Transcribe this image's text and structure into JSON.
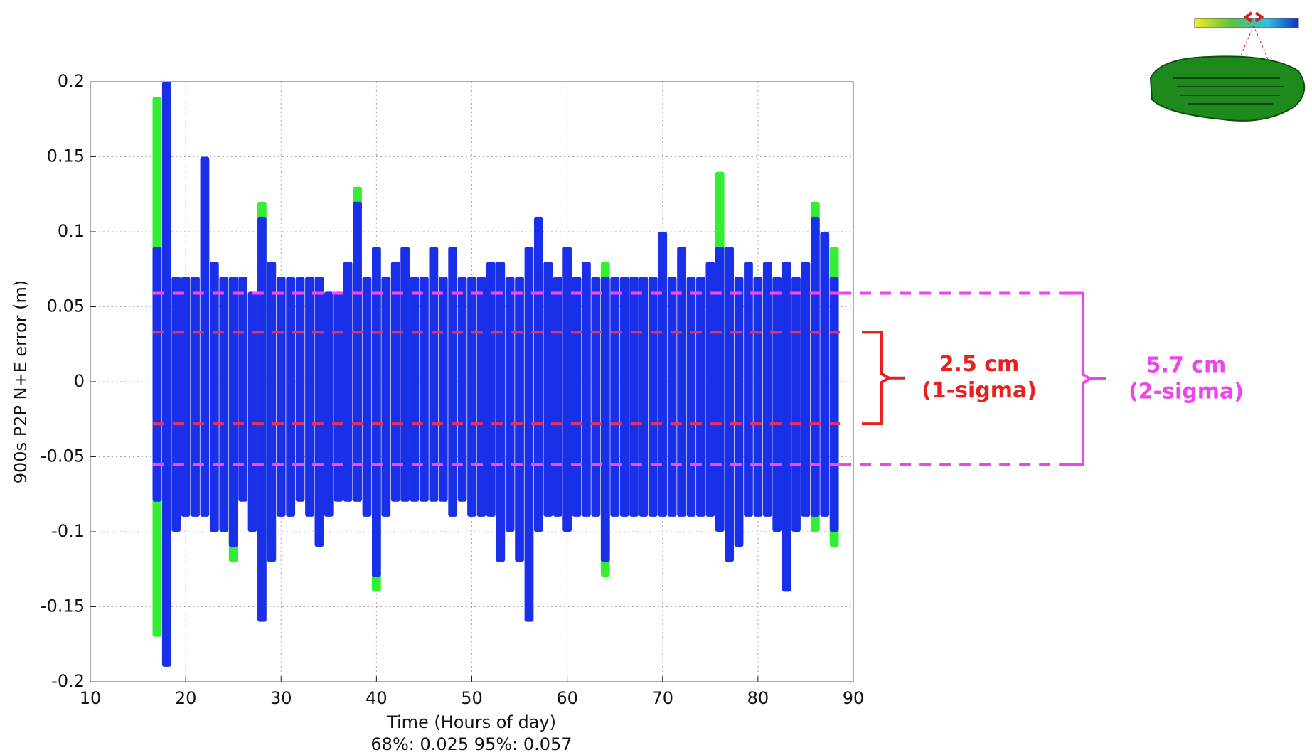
{
  "chart_data": {
    "type": "range",
    "xlabel": "Time (Hours of day)",
    "ylabel": "900s P2P N+E error (m)",
    "footnote": "68%: 0.025  95%: 0.057",
    "xlim": [
      10,
      90
    ],
    "xticks": [
      10,
      20,
      30,
      40,
      50,
      60,
      70,
      80,
      90
    ],
    "ylim": [
      -0.2,
      0.2
    ],
    "yticks": [
      0.2,
      0.15,
      0.1,
      0.05,
      0,
      -0.05,
      -0.1,
      -0.15,
      -0.2
    ],
    "grid": true,
    "series": [
      {
        "color": "#33ee33",
        "x": [
          17,
          18,
          25,
          28,
          38,
          40,
          53,
          64,
          76,
          86,
          88
        ],
        "high": [
          0.19,
          0.2,
          0.07,
          0.12,
          0.13,
          0.09,
          0.08,
          0.08,
          0.14,
          0.12,
          0.09
        ],
        "low": [
          -0.17,
          -0.18,
          -0.12,
          -0.11,
          -0.08,
          -0.14,
          -0.12,
          -0.13,
          -0.1,
          -0.1,
          -0.11
        ]
      },
      {
        "color": "#1a2fe8",
        "x": [
          17,
          18,
          19,
          20,
          21,
          22,
          23,
          24,
          25,
          26,
          27,
          28,
          29,
          30,
          31,
          32,
          33,
          34,
          35,
          36,
          37,
          38,
          39,
          40,
          41,
          42,
          43,
          44,
          45,
          46,
          47,
          48,
          49,
          50,
          51,
          52,
          53,
          54,
          55,
          56,
          57,
          58,
          59,
          60,
          61,
          62,
          63,
          64,
          65,
          66,
          67,
          68,
          69,
          70,
          71,
          72,
          73,
          74,
          75,
          76,
          77,
          78,
          79,
          80,
          81,
          82,
          83,
          84,
          85,
          86,
          87,
          88
        ],
        "high": [
          0.09,
          0.2,
          0.07,
          0.07,
          0.07,
          0.15,
          0.08,
          0.07,
          0.07,
          0.07,
          0.06,
          0.11,
          0.08,
          0.07,
          0.07,
          0.07,
          0.07,
          0.07,
          0.06,
          0.06,
          0.08,
          0.12,
          0.07,
          0.09,
          0.07,
          0.08,
          0.09,
          0.07,
          0.07,
          0.09,
          0.07,
          0.09,
          0.07,
          0.07,
          0.07,
          0.08,
          0.08,
          0.07,
          0.07,
          0.09,
          0.11,
          0.08,
          0.07,
          0.09,
          0.07,
          0.08,
          0.07,
          0.07,
          0.07,
          0.07,
          0.07,
          0.07,
          0.07,
          0.1,
          0.07,
          0.09,
          0.07,
          0.07,
          0.08,
          0.09,
          0.09,
          0.07,
          0.08,
          0.07,
          0.08,
          0.07,
          0.08,
          0.07,
          0.08,
          0.11,
          0.1,
          0.07
        ],
        "low": [
          -0.08,
          -0.19,
          -0.1,
          -0.09,
          -0.09,
          -0.09,
          -0.1,
          -0.1,
          -0.11,
          -0.08,
          -0.1,
          -0.16,
          -0.12,
          -0.09,
          -0.09,
          -0.08,
          -0.09,
          -0.11,
          -0.09,
          -0.08,
          -0.08,
          -0.08,
          -0.09,
          -0.13,
          -0.09,
          -0.08,
          -0.08,
          -0.08,
          -0.08,
          -0.08,
          -0.08,
          -0.09,
          -0.08,
          -0.09,
          -0.09,
          -0.09,
          -0.12,
          -0.1,
          -0.12,
          -0.16,
          -0.1,
          -0.09,
          -0.09,
          -0.1,
          -0.09,
          -0.09,
          -0.09,
          -0.12,
          -0.09,
          -0.09,
          -0.09,
          -0.09,
          -0.09,
          -0.09,
          -0.09,
          -0.09,
          -0.09,
          -0.09,
          -0.09,
          -0.1,
          -0.12,
          -0.11,
          -0.09,
          -0.09,
          -0.09,
          -0.1,
          -0.14,
          -0.1,
          -0.09,
          -0.09,
          -0.09,
          -0.1
        ]
      }
    ],
    "hlines": [
      {
        "value": 0.059,
        "color": "#ff44ff"
      },
      {
        "value": 0.033,
        "color": "#e8305a"
      },
      {
        "value": -0.028,
        "color": "#e8305a"
      },
      {
        "value": -0.055,
        "color": "#ff44ff"
      }
    ],
    "annotations": [
      {
        "lines": [
          "2.5 cm",
          "(1-sigma)"
        ],
        "color": "#e82020",
        "top": 0.033,
        "bottom": -0.028
      },
      {
        "lines": [
          "5.7 cm",
          "(2-sigma)"
        ],
        "color": "#ee44ee",
        "top": 0.059,
        "bottom": -0.055
      }
    ]
  }
}
